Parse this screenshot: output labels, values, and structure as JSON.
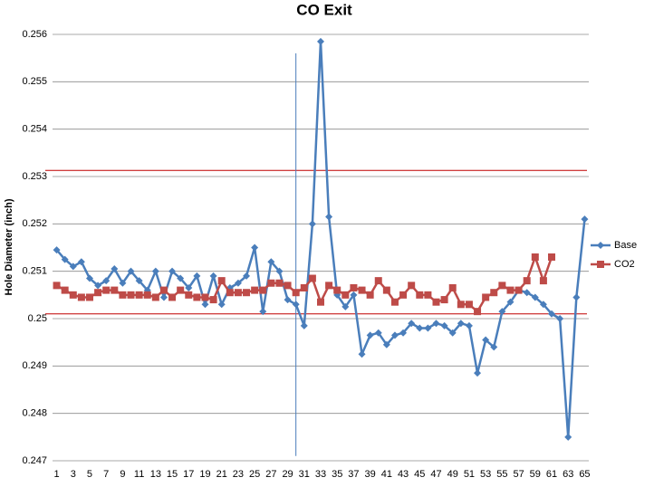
{
  "chart_data": {
    "type": "line",
    "title": "CO Exit",
    "y_label": "Hole Diameter (inch)",
    "categories": [
      1,
      null,
      3,
      null,
      5,
      null,
      7,
      null,
      9,
      null,
      11,
      null,
      13,
      null,
      15,
      null,
      17,
      null,
      19,
      null,
      21,
      null,
      23,
      null,
      25,
      null,
      27,
      null,
      29,
      null,
      31,
      null,
      33,
      null,
      35,
      null,
      37,
      null,
      39,
      null,
      41,
      null,
      43,
      null,
      45,
      null,
      47,
      null,
      49,
      null,
      51,
      null,
      53,
      null,
      55,
      null,
      57,
      null,
      59,
      null,
      61,
      null,
      63,
      null,
      65
    ],
    "series": [
      {
        "name": "Base",
        "color": "#4a7ebb",
        "marker": "diamond",
        "values": [
          0.25145,
          0.25125,
          0.2511,
          0.2512,
          0.25085,
          0.2507,
          0.2508,
          0.25105,
          0.25075,
          0.251,
          0.2508,
          0.2506,
          0.251,
          0.25045,
          0.251,
          0.25085,
          0.25065,
          0.2509,
          0.2503,
          0.2509,
          0.2503,
          0.25065,
          0.25075,
          0.2509,
          0.2515,
          0.25015,
          0.2512,
          0.251,
          0.2504,
          0.2503,
          0.24985,
          0.252,
          0.25585,
          0.25215,
          0.2505,
          0.25025,
          0.2505,
          0.24925,
          0.24965,
          0.2497,
          0.24945,
          0.24965,
          0.2497,
          0.2499,
          0.2498,
          0.2498,
          0.2499,
          0.24985,
          0.2497,
          0.2499,
          0.24985,
          0.24885,
          0.24955,
          0.2494,
          0.25015,
          0.25035,
          0.2506,
          0.25055,
          0.25045,
          0.2503,
          0.2501,
          0.25,
          0.2475,
          0.25045,
          0.2521
        ]
      },
      {
        "name": "CO2",
        "color": "#be4b48",
        "marker": "square",
        "values": [
          0.2507,
          0.2506,
          0.2505,
          0.25045,
          0.25045,
          0.25055,
          0.2506,
          0.2506,
          0.2505,
          0.2505,
          0.2505,
          0.2505,
          0.25045,
          0.2506,
          0.25045,
          0.2506,
          0.2505,
          0.25045,
          0.25045,
          0.2504,
          0.2508,
          0.25055,
          0.25055,
          0.25055,
          0.2506,
          0.2506,
          0.25075,
          0.25075,
          0.2507,
          0.25055,
          0.25065,
          0.25085,
          0.25035,
          0.2507,
          0.2506,
          0.2505,
          0.25065,
          0.2506,
          0.2505,
          0.2508,
          0.2506,
          0.25035,
          0.2505,
          0.2507,
          0.2505,
          0.2505,
          0.25035,
          0.2504,
          0.25065,
          0.2503,
          0.2503,
          0.25015,
          0.25045,
          0.25055,
          0.2507,
          0.2506,
          0.2506,
          0.2508,
          0.2513,
          0.2508,
          0.2513,
          null,
          null,
          null,
          null
        ]
      }
    ],
    "ylim": [
      0.247,
      0.256
    ],
    "yticks": [
      0.247,
      0.248,
      0.249,
      0.25,
      0.251,
      0.252,
      0.253,
      0.254,
      0.255,
      0.256
    ],
    "grid": true,
    "legend": "right",
    "hlines": [
      0.25313,
      0.2501
    ],
    "hline_color": "#c00000",
    "vline": {
      "x": 30,
      "y": [
        0.2471,
        0.2556
      ],
      "color": "#4a7ebb"
    }
  }
}
